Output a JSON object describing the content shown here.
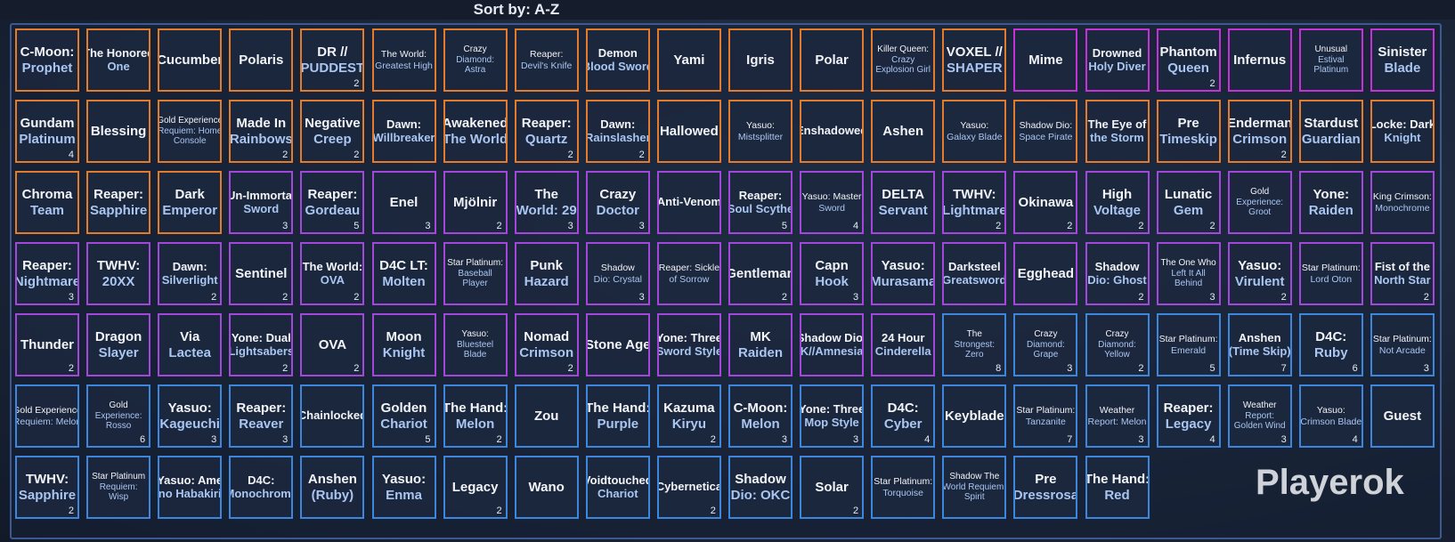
{
  "header": {
    "sort_label": "Sort by: A-Z"
  },
  "watermark": "Playerok",
  "columns": 20,
  "tiles": [
    {
      "lines": [
        "C-Moon:",
        "Prophet"
      ],
      "color": "#e27b2c"
    },
    {
      "lines": [
        "The Honored",
        "One"
      ],
      "color": "#e27b2c"
    },
    {
      "lines": [
        "Cucumber"
      ],
      "color": "#e27b2c"
    },
    {
      "lines": [
        "Polaris"
      ],
      "color": "#e27b2c"
    },
    {
      "lines": [
        "DR //",
        "PUDDEST"
      ],
      "count": 2,
      "color": "#e27b2c"
    },
    {
      "lines": [
        "The World:",
        "Greatest High"
      ],
      "color": "#e27b2c"
    },
    {
      "lines": [
        "Crazy",
        "Diamond:",
        "Astra"
      ],
      "color": "#e27b2c"
    },
    {
      "lines": [
        "Reaper:",
        "Devil's Knife"
      ],
      "color": "#e27b2c"
    },
    {
      "lines": [
        "Demon",
        "Blood Sword"
      ],
      "color": "#e27b2c"
    },
    {
      "lines": [
        "Yami"
      ],
      "color": "#e27b2c"
    },
    {
      "lines": [
        "Igris"
      ],
      "color": "#e27b2c"
    },
    {
      "lines": [
        "Polar"
      ],
      "color": "#e27b2c"
    },
    {
      "lines": [
        "Killer Queen:",
        "Crazy",
        "Explosion Girl"
      ],
      "color": "#e27b2c"
    },
    {
      "lines": [
        "VOXEL //",
        "SHAPER"
      ],
      "color": "#e27b2c"
    },
    {
      "lines": [
        "Mime"
      ],
      "color": "#c431d6"
    },
    {
      "lines": [
        "Drowned",
        "Holy Diver"
      ],
      "color": "#c431d6"
    },
    {
      "lines": [
        "Phantom",
        "Queen"
      ],
      "count": 2,
      "color": "#c431d6"
    },
    {
      "lines": [
        "Infernus"
      ],
      "color": "#c431d6"
    },
    {
      "lines": [
        "Unusual",
        "Estival",
        "Platinum"
      ],
      "color": "#c431d6"
    },
    {
      "lines": [
        "Sinister",
        "Blade"
      ],
      "color": "#c431d6"
    },
    {
      "lines": [
        "Gundam",
        "Platinum"
      ],
      "count": 4,
      "color": "#e27b2c"
    },
    {
      "lines": [
        "Blessing"
      ],
      "color": "#e27b2c"
    },
    {
      "lines": [
        "Gold Experience",
        "Requiem: Home",
        "Console"
      ],
      "color": "#e27b2c"
    },
    {
      "lines": [
        "Made In",
        "Rainbows"
      ],
      "count": 2,
      "color": "#e27b2c"
    },
    {
      "lines": [
        "Negative",
        "Creep"
      ],
      "count": 2,
      "color": "#e27b2c"
    },
    {
      "lines": [
        "Dawn:",
        "Willbreaker"
      ],
      "color": "#e27b2c"
    },
    {
      "lines": [
        "Awakened",
        "The World"
      ],
      "color": "#e27b2c"
    },
    {
      "lines": [
        "Reaper:",
        "Quartz"
      ],
      "count": 2,
      "color": "#e27b2c"
    },
    {
      "lines": [
        "Dawn:",
        "Rainslasher"
      ],
      "count": 2,
      "color": "#e27b2c"
    },
    {
      "lines": [
        "Hallowed"
      ],
      "color": "#e27b2c"
    },
    {
      "lines": [
        "Yasuo:",
        "Mistsplitter"
      ],
      "color": "#e27b2c"
    },
    {
      "lines": [
        "Enshadowed"
      ],
      "color": "#e27b2c"
    },
    {
      "lines": [
        "Ashen"
      ],
      "color": "#e27b2c"
    },
    {
      "lines": [
        "Yasuo:",
        "Galaxy Blade"
      ],
      "color": "#e27b2c"
    },
    {
      "lines": [
        "Shadow Dio:",
        "Space Pirate"
      ],
      "color": "#e27b2c"
    },
    {
      "lines": [
        "The Eye of",
        "the Storm"
      ],
      "color": "#e27b2c"
    },
    {
      "lines": [
        "Pre",
        "Timeskip"
      ],
      "color": "#e27b2c"
    },
    {
      "lines": [
        "Enderman",
        "Crimson"
      ],
      "count": 2,
      "color": "#e27b2c"
    },
    {
      "lines": [
        "Stardust",
        "Guardian"
      ],
      "color": "#e27b2c"
    },
    {
      "lines": [
        "Locke: Dark",
        "Knight"
      ],
      "color": "#e27b2c"
    },
    {
      "lines": [
        "Chroma",
        "Team"
      ],
      "color": "#e27b2c"
    },
    {
      "lines": [
        "Reaper:",
        "Sapphire"
      ],
      "color": "#e27b2c"
    },
    {
      "lines": [
        "Dark",
        "Emperor"
      ],
      "color": "#e27b2c"
    },
    {
      "lines": [
        "Un-Immortal",
        "Sword"
      ],
      "count": 3,
      "color": "#a346dc"
    },
    {
      "lines": [
        "Reaper:",
        "Gordeau"
      ],
      "count": 5,
      "color": "#a346dc"
    },
    {
      "lines": [
        "Enel"
      ],
      "count": 3,
      "color": "#a346dc"
    },
    {
      "lines": [
        "Mjölnir"
      ],
      "count": 2,
      "color": "#a346dc"
    },
    {
      "lines": [
        "The",
        "World: 29"
      ],
      "count": 3,
      "color": "#a346dc"
    },
    {
      "lines": [
        "Crazy",
        "Doctor"
      ],
      "count": 3,
      "color": "#a346dc"
    },
    {
      "lines": [
        "Anti-Venom"
      ],
      "color": "#a346dc"
    },
    {
      "lines": [
        "Reaper:",
        "Soul Scythe"
      ],
      "count": 5,
      "color": "#a346dc"
    },
    {
      "lines": [
        "Yasuo: Master",
        "Sword"
      ],
      "count": 4,
      "color": "#a346dc"
    },
    {
      "lines": [
        "DELTA",
        "Servant"
      ],
      "color": "#a346dc"
    },
    {
      "lines": [
        "TWHV:",
        "Lightmare"
      ],
      "count": 2,
      "color": "#a346dc"
    },
    {
      "lines": [
        "Okinawa"
      ],
      "count": 2,
      "color": "#a346dc"
    },
    {
      "lines": [
        "High",
        "Voltage"
      ],
      "count": 2,
      "color": "#a346dc"
    },
    {
      "lines": [
        "Lunatic",
        "Gem"
      ],
      "count": 2,
      "color": "#a346dc"
    },
    {
      "lines": [
        "Gold",
        "Experience:",
        "Groot"
      ],
      "color": "#a346dc"
    },
    {
      "lines": [
        "Yone:",
        "Raiden"
      ],
      "color": "#a346dc"
    },
    {
      "lines": [
        "King Crimson:",
        "Monochrome"
      ],
      "color": "#a346dc"
    },
    {
      "lines": [
        "Reaper:",
        "Nightmare"
      ],
      "count": 3,
      "color": "#a346dc"
    },
    {
      "lines": [
        "TWHV:",
        "20XX"
      ],
      "color": "#a346dc"
    },
    {
      "lines": [
        "Dawn:",
        "Silverlight"
      ],
      "count": 2,
      "color": "#a346dc"
    },
    {
      "lines": [
        "Sentinel"
      ],
      "count": 2,
      "color": "#a346dc"
    },
    {
      "lines": [
        "The World:",
        "OVA"
      ],
      "count": 2,
      "color": "#a346dc"
    },
    {
      "lines": [
        "D4C LT:",
        "Molten"
      ],
      "color": "#a346dc"
    },
    {
      "lines": [
        "Star Platinum:",
        "Baseball",
        "Player"
      ],
      "color": "#a346dc"
    },
    {
      "lines": [
        "Punk",
        "Hazard"
      ],
      "color": "#a346dc"
    },
    {
      "lines": [
        "Shadow",
        "Dio: Crystal"
      ],
      "count": 3,
      "color": "#a346dc"
    },
    {
      "lines": [
        "Reaper: Sickle",
        "of Sorrow"
      ],
      "color": "#a346dc"
    },
    {
      "lines": [
        "Gentleman"
      ],
      "count": 2,
      "color": "#a346dc"
    },
    {
      "lines": [
        "Capn",
        "Hook"
      ],
      "count": 3,
      "color": "#a346dc"
    },
    {
      "lines": [
        "Yasuo:",
        "Murasama"
      ],
      "color": "#a346dc"
    },
    {
      "lines": [
        "Darksteel",
        "Greatsword"
      ],
      "color": "#a346dc"
    },
    {
      "lines": [
        "Egghead"
      ],
      "color": "#a346dc"
    },
    {
      "lines": [
        "Shadow",
        "Dio: Ghost"
      ],
      "count": 2,
      "color": "#a346dc"
    },
    {
      "lines": [
        "The One Who",
        "Left It All",
        "Behind"
      ],
      "count": 3,
      "color": "#a346dc"
    },
    {
      "lines": [
        "Yasuo:",
        "Virulent"
      ],
      "count": 2,
      "color": "#a346dc"
    },
    {
      "lines": [
        "Star Platinum:",
        "Lord Oton"
      ],
      "color": "#a346dc"
    },
    {
      "lines": [
        "Fist of the",
        "North Star"
      ],
      "count": 2,
      "color": "#a346dc"
    },
    {
      "lines": [
        "Thunder"
      ],
      "count": 2,
      "color": "#a346dc"
    },
    {
      "lines": [
        "Dragon",
        "Slayer"
      ],
      "color": "#a346dc"
    },
    {
      "lines": [
        "Via",
        "Lactea"
      ],
      "color": "#a346dc"
    },
    {
      "lines": [
        "Yone: Dual",
        "Lightsabers"
      ],
      "count": 2,
      "color": "#a346dc"
    },
    {
      "lines": [
        "OVA"
      ],
      "count": 2,
      "color": "#a346dc"
    },
    {
      "lines": [
        "Moon",
        "Knight"
      ],
      "color": "#a346dc"
    },
    {
      "lines": [
        "Yasuo:",
        "Bluesteel",
        "Blade"
      ],
      "color": "#a346dc"
    },
    {
      "lines": [
        "Nomad",
        "Crimson"
      ],
      "count": 2,
      "color": "#a346dc"
    },
    {
      "lines": [
        "Stone Age"
      ],
      "color": "#a346dc"
    },
    {
      "lines": [
        "Yone: Three",
        "Sword Style"
      ],
      "color": "#a346dc"
    },
    {
      "lines": [
        "MK",
        "Raiden"
      ],
      "color": "#a346dc"
    },
    {
      "lines": [
        "Shadow Dio:",
        "K//Amnesia"
      ],
      "color": "#a346dc"
    },
    {
      "lines": [
        "24 Hour",
        "Cinderella"
      ],
      "color": "#a346dc"
    },
    {
      "lines": [
        "The",
        "Strongest:",
        "Zero"
      ],
      "count": 8,
      "color": "#3d86de"
    },
    {
      "lines": [
        "Crazy",
        "Diamond:",
        "Grape"
      ],
      "count": 3,
      "color": "#3d86de"
    },
    {
      "lines": [
        "Crazy",
        "Diamond:",
        "Yellow"
      ],
      "count": 2,
      "color": "#3d86de"
    },
    {
      "lines": [
        "Star Platinum:",
        "Emerald"
      ],
      "count": 5,
      "color": "#3d86de"
    },
    {
      "lines": [
        "Anshen",
        "(Time Skip)"
      ],
      "count": 7,
      "color": "#3d86de"
    },
    {
      "lines": [
        "D4C:",
        "Ruby"
      ],
      "count": 6,
      "color": "#3d86de"
    },
    {
      "lines": [
        "Star Platinum:",
        "Not Arcade"
      ],
      "count": 3,
      "color": "#3d86de"
    },
    {
      "lines": [
        "Gold Experience",
        "Requiem: Melon"
      ],
      "color": "#3d86de"
    },
    {
      "lines": [
        "Gold",
        "Experience:",
        "Rosso"
      ],
      "count": 6,
      "color": "#3d86de"
    },
    {
      "lines": [
        "Yasuo:",
        "Kageuchi"
      ],
      "count": 3,
      "color": "#3d86de"
    },
    {
      "lines": [
        "Reaper:",
        "Reaver"
      ],
      "count": 3,
      "color": "#3d86de"
    },
    {
      "lines": [
        "Chainlocked"
      ],
      "color": "#3d86de"
    },
    {
      "lines": [
        "Golden",
        "Chariot"
      ],
      "count": 5,
      "color": "#3d86de"
    },
    {
      "lines": [
        "The Hand:",
        "Melon"
      ],
      "count": 2,
      "color": "#3d86de"
    },
    {
      "lines": [
        "Zou"
      ],
      "color": "#3d86de"
    },
    {
      "lines": [
        "The Hand:",
        "Purple"
      ],
      "color": "#3d86de"
    },
    {
      "lines": [
        "Kazuma",
        "Kiryu"
      ],
      "count": 2,
      "color": "#3d86de"
    },
    {
      "lines": [
        "C-Moon:",
        "Melon"
      ],
      "count": 3,
      "color": "#3d86de"
    },
    {
      "lines": [
        "Yone: Three",
        "Mop Style"
      ],
      "count": 3,
      "color": "#3d86de"
    },
    {
      "lines": [
        "D4C:",
        "Cyber"
      ],
      "count": 4,
      "color": "#3d86de"
    },
    {
      "lines": [
        "Keyblade"
      ],
      "color": "#3d86de"
    },
    {
      "lines": [
        "Star Platinum:",
        "Tanzanite"
      ],
      "count": 7,
      "color": "#3d86de"
    },
    {
      "lines": [
        "Weather",
        "Report: Melon"
      ],
      "count": 3,
      "color": "#3d86de"
    },
    {
      "lines": [
        "Reaper:",
        "Legacy"
      ],
      "count": 4,
      "color": "#3d86de"
    },
    {
      "lines": [
        "Weather",
        "Report:",
        "Golden Wind"
      ],
      "count": 3,
      "color": "#3d86de"
    },
    {
      "lines": [
        "Yasuo:",
        "Crimson Blade"
      ],
      "count": 4,
      "color": "#3d86de"
    },
    {
      "lines": [
        "Guest"
      ],
      "color": "#3d86de"
    },
    {
      "lines": [
        "TWHV:",
        "Sapphire"
      ],
      "count": 2,
      "color": "#3d86de"
    },
    {
      "lines": [
        "Star Platinum",
        "Requiem:",
        "Wisp"
      ],
      "color": "#3d86de"
    },
    {
      "lines": [
        "Yasuo: Ame",
        "no Habakiri"
      ],
      "color": "#3d86de"
    },
    {
      "lines": [
        "D4C:",
        "Monochrome"
      ],
      "color": "#3d86de"
    },
    {
      "lines": [
        "Anshen",
        "(Ruby)"
      ],
      "color": "#3d86de"
    },
    {
      "lines": [
        "Yasuo:",
        "Enma"
      ],
      "color": "#3d86de"
    },
    {
      "lines": [
        "Legacy"
      ],
      "count": 2,
      "color": "#3d86de"
    },
    {
      "lines": [
        "Wano"
      ],
      "color": "#3d86de"
    },
    {
      "lines": [
        "Voidtouched",
        "Chariot"
      ],
      "color": "#3d86de"
    },
    {
      "lines": [
        "Cybernetica"
      ],
      "count": 2,
      "color": "#3d86de"
    },
    {
      "lines": [
        "Shadow",
        "Dio: OKC"
      ],
      "color": "#3d86de"
    },
    {
      "lines": [
        "Solar"
      ],
      "count": 2,
      "color": "#3d86de"
    },
    {
      "lines": [
        "Star Platinum:",
        "Torquoise"
      ],
      "color": "#3d86de"
    },
    {
      "lines": [
        "Shadow The",
        "World Requiem:",
        "Spirit"
      ],
      "color": "#3d86de"
    },
    {
      "lines": [
        "Pre",
        "Dressrosa"
      ],
      "color": "#3d86de"
    },
    {
      "lines": [
        "The Hand:",
        "Red"
      ],
      "color": "#3d86de"
    }
  ]
}
